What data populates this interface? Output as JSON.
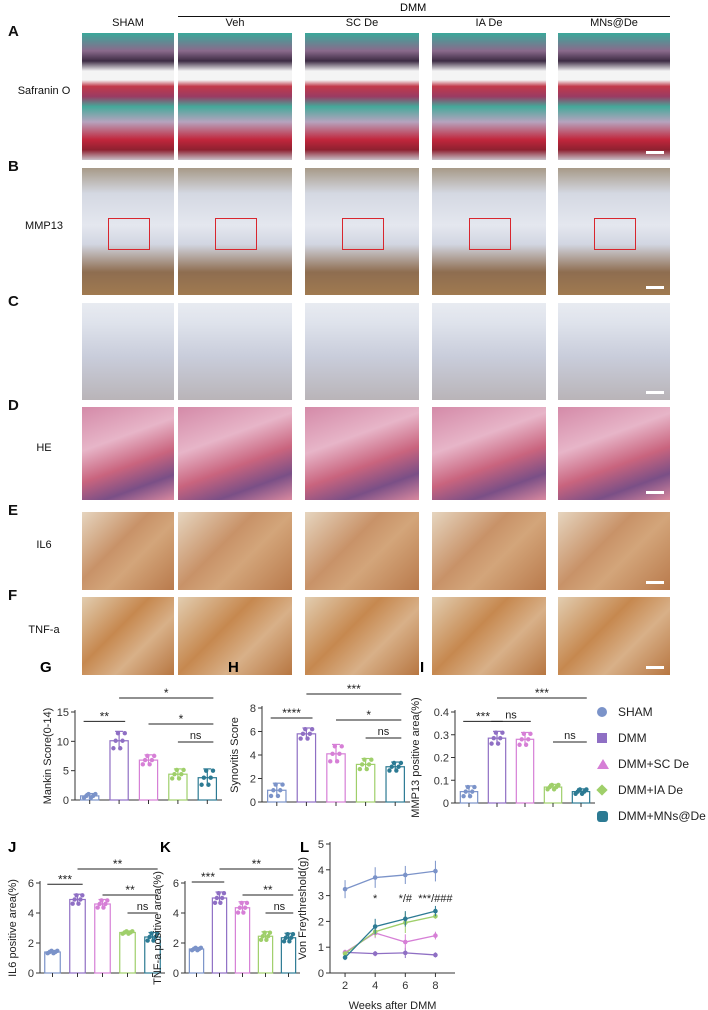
{
  "header": {
    "group_label": "DMM",
    "columns": [
      "SHAM",
      "Veh",
      "SC De",
      "IA De",
      "MNs@De"
    ]
  },
  "rows": [
    {
      "panel": "A",
      "label": "Safranin O"
    },
    {
      "panel": "B",
      "label": "MMP13"
    },
    {
      "panel": "C",
      "label": ""
    },
    {
      "panel": "D",
      "label": "HE"
    },
    {
      "panel": "E",
      "label": "IL6"
    },
    {
      "panel": "F",
      "label": "TNF-a"
    }
  ],
  "legend": [
    {
      "name": "SHAM",
      "color": "#7b93c9",
      "marker": "circle"
    },
    {
      "name": "DMM",
      "color": "#8f6fc4",
      "marker": "square"
    },
    {
      "name": "DMM+SC De",
      "color": "#d67fd6",
      "marker": "triangle"
    },
    {
      "name": "DMM+IA De",
      "color": "#9fcf6a",
      "marker": "diamond"
    },
    {
      "name": "DMM+MNs@De",
      "color": "#2c7a93",
      "marker": "hexagon"
    }
  ],
  "chart_data": [
    {
      "panel": "G",
      "type": "bar",
      "ylabel": "Mankin Score(0-14)",
      "ylim": [
        0,
        15
      ],
      "yticks": [
        0,
        5,
        10,
        15
      ],
      "values": [
        0.7,
        10.1,
        6.8,
        4.4,
        3.8
      ],
      "errors": [
        0.4,
        1.6,
        0.9,
        0.9,
        1.5
      ],
      "significance": [
        {
          "from": 0,
          "to": 1,
          "label": "**"
        },
        {
          "from": 1,
          "to": 4,
          "label": "*"
        },
        {
          "from": 2,
          "to": 4,
          "label": "*"
        },
        {
          "from": 3,
          "to": 4,
          "label": "ns"
        }
      ]
    },
    {
      "panel": "H",
      "type": "bar",
      "ylabel": "Synovitis Score",
      "ylim": [
        0,
        8
      ],
      "yticks": [
        0,
        2,
        4,
        6,
        8
      ],
      "values": [
        1.0,
        5.8,
        4.1,
        3.2,
        3.0
      ],
      "errors": [
        0.6,
        0.5,
        0.8,
        0.5,
        0.4
      ],
      "significance": [
        {
          "from": 0,
          "to": 1,
          "label": "****"
        },
        {
          "from": 1,
          "to": 4,
          "label": "***"
        },
        {
          "from": 2,
          "to": 4,
          "label": "*"
        },
        {
          "from": 3,
          "to": 4,
          "label": "ns"
        }
      ]
    },
    {
      "panel": "I",
      "type": "bar",
      "ylabel": "MMP13 positive area(%)",
      "ylim": [
        0,
        0.4
      ],
      "yticks": [
        0,
        0.1,
        0.2,
        0.3,
        0.4
      ],
      "values": [
        0.05,
        0.285,
        0.28,
        0.07,
        0.05
      ],
      "errors": [
        0.025,
        0.03,
        0.03,
        0.012,
        0.012
      ],
      "significance": [
        {
          "from": 0,
          "to": 1,
          "label": "***"
        },
        {
          "from": 1,
          "to": 2,
          "label": "ns"
        },
        {
          "from": 1,
          "to": 4,
          "label": "***"
        },
        {
          "from": 3,
          "to": 4,
          "label": "ns"
        }
      ]
    },
    {
      "panel": "J",
      "type": "bar",
      "ylabel": "IL6 positive area(%)",
      "ylim": [
        0,
        6
      ],
      "yticks": [
        0,
        2,
        4,
        6
      ],
      "values": [
        1.4,
        4.9,
        4.6,
        2.7,
        2.4
      ],
      "errors": [
        0.1,
        0.35,
        0.3,
        0.1,
        0.3
      ],
      "significance": [
        {
          "from": 0,
          "to": 1,
          "label": "***"
        },
        {
          "from": 1,
          "to": 4,
          "label": "**"
        },
        {
          "from": 2,
          "to": 4,
          "label": "**"
        },
        {
          "from": 3,
          "to": 4,
          "label": "ns"
        }
      ]
    },
    {
      "panel": "K",
      "type": "bar",
      "ylabel": "TNF-a positive area(%)",
      "ylim": [
        0,
        6
      ],
      "yticks": [
        0,
        2,
        4,
        6
      ],
      "values": [
        1.6,
        5.0,
        4.35,
        2.45,
        2.35
      ],
      "errors": [
        0.1,
        0.4,
        0.4,
        0.3,
        0.3
      ],
      "significance": [
        {
          "from": 0,
          "to": 1,
          "label": "***"
        },
        {
          "from": 1,
          "to": 4,
          "label": "**"
        },
        {
          "from": 2,
          "to": 4,
          "label": "**"
        },
        {
          "from": 3,
          "to": 4,
          "label": "ns"
        }
      ]
    },
    {
      "panel": "L",
      "type": "line",
      "xlabel": "Weeks after DMM",
      "ylabel": "Von Freythreshold(g)",
      "x": [
        2,
        4,
        6,
        8
      ],
      "xlim": [
        1,
        9.3
      ],
      "ylim": [
        0,
        5
      ],
      "yticks": [
        0,
        1,
        2,
        3,
        4,
        5
      ],
      "series": [
        {
          "values": [
            3.25,
            3.7,
            3.8,
            3.95
          ],
          "errors": [
            0.35,
            0.4,
            0.35,
            0.4
          ]
        },
        {
          "values": [
            0.8,
            0.75,
            0.78,
            0.7
          ],
          "errors": [
            0.1,
            0.1,
            0.2,
            0.1
          ]
        },
        {
          "values": [
            0.8,
            1.55,
            1.2,
            1.45
          ],
          "errors": [
            0.1,
            0.2,
            0.3,
            0.15
          ]
        },
        {
          "values": [
            0.75,
            1.6,
            1.95,
            2.2
          ],
          "errors": [
            0.1,
            0.2,
            0.4,
            0.1
          ]
        },
        {
          "values": [
            0.6,
            1.8,
            2.1,
            2.4
          ],
          "errors": [
            0.1,
            0.3,
            0.3,
            0.2
          ]
        }
      ],
      "annotations": [
        {
          "x": 4,
          "label": "*"
        },
        {
          "x": 6,
          "label": "*/#"
        },
        {
          "x": 8,
          "label": "***/###"
        }
      ]
    }
  ]
}
